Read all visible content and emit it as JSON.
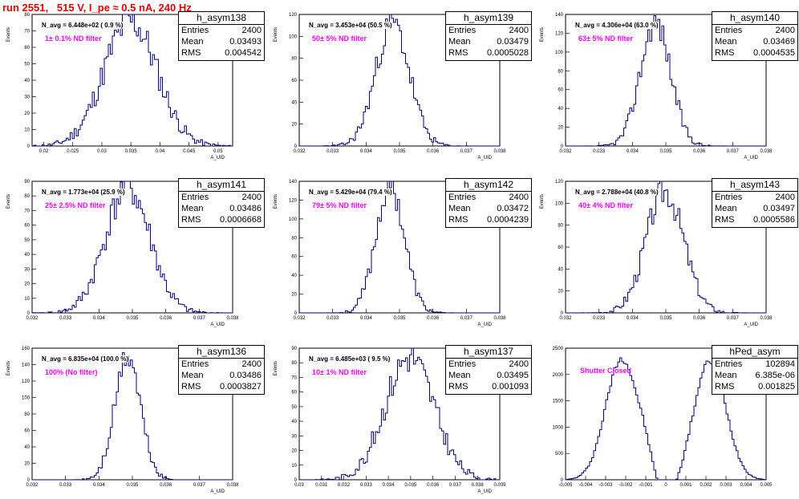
{
  "title": "run 2551,   515 V, I_pe ≈ 0.5 nA, 240 Hz",
  "colors": {
    "title": "#e60000",
    "histogram": "#000080",
    "filter_label": "#ff00ff"
  },
  "chart_data": [
    {
      "type": "histogram",
      "name": "h_asym138",
      "entries": "2400",
      "mean": "0.03493",
      "rms": "0.004542",
      "navg": "N_avg = 6.448e+02 ( 0.9 %)",
      "filter": "1± 0.1% ND filter",
      "ylabel": "Events",
      "xlabel": "A_UID",
      "xlim": [
        0.018,
        0.0525
      ],
      "ylim": [
        0,
        80
      ],
      "xticks": [
        "0.02",
        "0.025",
        "0.03",
        "0.035",
        "0.04",
        "0.045",
        "0.05"
      ],
      "yticks": [
        "0",
        "10",
        "20",
        "30",
        "40",
        "50",
        "60",
        "70",
        "80"
      ],
      "mu": 0.03493,
      "sigma": 0.004542,
      "peak": 76,
      "seed": 11
    },
    {
      "type": "histogram",
      "name": "h_asym139",
      "entries": "2400",
      "mean": "0.03479",
      "rms": "0.0005028",
      "navg": "N_avg = 3.453e+04 (50.5 %)",
      "filter": "50± 5% ND filter",
      "ylabel": "Events",
      "xlabel": "A_UID",
      "xlim": [
        0.032,
        0.038
      ],
      "ylim": [
        0,
        120
      ],
      "xticks": [
        "0.032",
        "0.033",
        "0.034",
        "0.035",
        "0.036",
        "0.037",
        "0.038"
      ],
      "yticks": [
        "0",
        "20",
        "40",
        "60",
        "80",
        "100",
        "120"
      ],
      "mu": 0.03479,
      "sigma": 0.0005028,
      "peak": 112,
      "seed": 23
    },
    {
      "type": "histogram",
      "name": "h_asym140",
      "entries": "2400",
      "mean": "0.03469",
      "rms": "0.0004535",
      "navg": "N_avg = 4.306e+04 (63.0 %)",
      "filter": "63± 5% ND filter",
      "ylabel": "Events",
      "xlabel": "A_UID",
      "xlim": [
        0.032,
        0.038
      ],
      "ylim": [
        0,
        140
      ],
      "xticks": [
        "0.032",
        "0.033",
        "0.034",
        "0.035",
        "0.036",
        "0.037",
        "0.038"
      ],
      "yticks": [
        "0",
        "20",
        "40",
        "60",
        "80",
        "100",
        "120",
        "140"
      ],
      "mu": 0.03469,
      "sigma": 0.0004535,
      "peak": 132,
      "seed": 37
    },
    {
      "type": "histogram",
      "name": "h_asym141",
      "entries": "2400",
      "mean": "0.03486",
      "rms": "0.0006668",
      "navg": "N_avg = 1.773e+04 (25.9 %)",
      "filter": "25± 2.5% ND filter",
      "ylabel": "Events",
      "xlabel": "A_UID",
      "xlim": [
        0.032,
        0.038
      ],
      "ylim": [
        0,
        90
      ],
      "xticks": [
        "0.032",
        "0.033",
        "0.034",
        "0.035",
        "0.036",
        "0.037",
        "0.038"
      ],
      "yticks": [
        "0",
        "10",
        "20",
        "30",
        "40",
        "50",
        "60",
        "70",
        "80",
        "90"
      ],
      "mu": 0.03486,
      "sigma": 0.0006668,
      "peak": 86,
      "seed": 41
    },
    {
      "type": "histogram",
      "name": "h_asym142",
      "entries": "2400",
      "mean": "0.03472",
      "rms": "0.0004239",
      "navg": "N_avg = 5.429e+04 (79.4 %)",
      "filter": "79± 5% ND filter",
      "ylabel": "Events",
      "xlabel": "A_UID",
      "xlim": [
        0.032,
        0.038
      ],
      "ylim": [
        0,
        140
      ],
      "xticks": [
        "0.032",
        "0.033",
        "0.034",
        "0.035",
        "0.036",
        "0.037",
        "0.038"
      ],
      "yticks": [
        "0",
        "20",
        "40",
        "60",
        "80",
        "100",
        "120",
        "140"
      ],
      "mu": 0.03472,
      "sigma": 0.0004239,
      "peak": 136,
      "seed": 53
    },
    {
      "type": "histogram",
      "name": "h_asym143",
      "entries": "2400",
      "mean": "0.03497",
      "rms": "0.0005586",
      "navg": "N_avg = 2.788e+04 (40.8 %)",
      "filter": "40± 4% ND filter",
      "ylabel": "Events",
      "xlabel": "A_UID",
      "xlim": [
        0.032,
        0.038
      ],
      "ylim": [
        0,
        120
      ],
      "xticks": [
        "0.032",
        "0.033",
        "0.034",
        "0.035",
        "0.036",
        "0.037",
        "0.038"
      ],
      "yticks": [
        "0",
        "20",
        "40",
        "60",
        "80",
        "100",
        "120"
      ],
      "mu": 0.03497,
      "sigma": 0.0005586,
      "peak": 112,
      "seed": 67
    },
    {
      "type": "histogram",
      "name": "h_asym136",
      "entries": "2400",
      "mean": "0.03486",
      "rms": "0.0003827",
      "navg": "N_avg = 6.835e+04 (100.0 %)",
      "filter": "100% (No filter)",
      "ylabel": "Events",
      "xlabel": "A_UID",
      "xlim": [
        0.032,
        0.038
      ],
      "ylim": [
        0,
        160
      ],
      "xticks": [
        "0.032",
        "0.033",
        "0.034",
        "0.035",
        "0.036",
        "0.037",
        "0.038"
      ],
      "yticks": [
        "0",
        "20",
        "40",
        "60",
        "80",
        "100",
        "120",
        "140",
        "160"
      ],
      "mu": 0.03486,
      "sigma": 0.0003827,
      "peak": 150,
      "seed": 71
    },
    {
      "type": "histogram",
      "name": "h_asym137",
      "entries": "2400",
      "mean": "0.03495",
      "rms": "0.001093",
      "navg": "N_avg = 6.485e+03 ( 9.5 %)",
      "filter": "10± 1% ND filter",
      "ylabel": "Events",
      "xlabel": "A_UID",
      "xlim": [
        0.03,
        0.039
      ],
      "ylim": [
        0,
        90
      ],
      "xticks": [
        "0.03",
        "0.031",
        "0.032",
        "0.033",
        "0.034",
        "0.035",
        "0.036",
        "0.037",
        "0.038",
        "0.039"
      ],
      "yticks": [
        "0",
        "10",
        "20",
        "30",
        "40",
        "50",
        "60",
        "70",
        "80",
        "90"
      ],
      "mu": 0.03495,
      "sigma": 0.001093,
      "peak": 84,
      "seed": 83
    },
    {
      "type": "histogram",
      "name": "hPed_asym",
      "entries": "102894",
      "mean": "6.385e-06",
      "rms": "0.001825",
      "navg": "",
      "filter": "Shutter Closed",
      "ylabel": "",
      "xlabel": "",
      "xlim": [
        -0.005,
        0.005
      ],
      "ylim": [
        0,
        2500
      ],
      "xticks": [
        "-0.005",
        "-0.004",
        "-0.003",
        "-0.002",
        "-0.001",
        "0",
        "0.001",
        "0.002",
        "0.003",
        "0.004",
        "0.005"
      ],
      "yticks": [
        "0",
        "500",
        "1000",
        "1500",
        "2000",
        "2500"
      ],
      "bimodal": true,
      "seed": 97
    }
  ]
}
